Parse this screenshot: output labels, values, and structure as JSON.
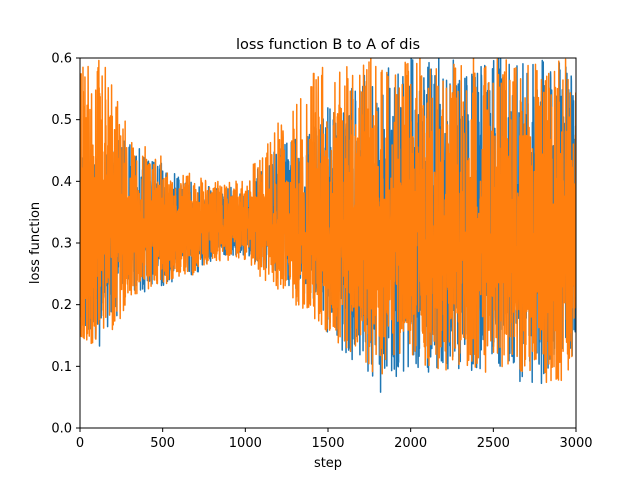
{
  "chart_data": {
    "type": "line",
    "title": "loss function B to A of dis",
    "xlabel": "step",
    "ylabel": "loss function",
    "xlim": [
      0,
      3000
    ],
    "ylim": [
      0.0,
      0.6
    ],
    "xticks": [
      0,
      500,
      1000,
      1500,
      2000,
      2500,
      3000
    ],
    "xtick_labels": [
      "0",
      "500",
      "1000",
      "1500",
      "2000",
      "2500",
      "3000"
    ],
    "yticks": [
      0.0,
      0.1,
      0.2,
      0.3,
      0.4,
      0.5,
      0.6
    ],
    "ytick_labels": [
      "0.0",
      "0.1",
      "0.2",
      "0.3",
      "0.4",
      "0.5",
      "0.6"
    ],
    "grid": false,
    "legend": "none",
    "series": [
      {
        "color": "#1f77b4",
        "x": [
          0,
          100,
          200,
          300,
          400,
          500,
          600,
          700,
          800,
          900,
          1000,
          1100,
          1200,
          1300,
          1400,
          1500,
          1600,
          1700,
          1800,
          1900,
          2000,
          2100,
          2200,
          2300,
          2400,
          2500,
          2600,
          2700,
          2800,
          2900,
          3000
        ],
        "low": [
          0.18,
          0.12,
          0.17,
          0.22,
          0.22,
          0.23,
          0.24,
          0.25,
          0.27,
          0.28,
          0.28,
          0.26,
          0.25,
          0.22,
          0.19,
          0.15,
          0.12,
          0.1,
          0.05,
          0.08,
          0.1,
          0.09,
          0.06,
          0.1,
          0.08,
          0.1,
          0.08,
          0.07,
          0.06,
          0.09,
          0.12
        ],
        "high": [
          0.44,
          0.45,
          0.47,
          0.47,
          0.45,
          0.43,
          0.41,
          0.4,
          0.39,
          0.39,
          0.39,
          0.43,
          0.46,
          0.48,
          0.5,
          0.52,
          0.55,
          0.57,
          0.58,
          0.6,
          0.6,
          0.6,
          0.6,
          0.6,
          0.6,
          0.6,
          0.6,
          0.6,
          0.6,
          0.6,
          0.6
        ],
        "mean": [
          0.32,
          0.31,
          0.32,
          0.33,
          0.32,
          0.32,
          0.32,
          0.32,
          0.33,
          0.33,
          0.33,
          0.33,
          0.33,
          0.32,
          0.31,
          0.3,
          0.3,
          0.3,
          0.3,
          0.3,
          0.3,
          0.3,
          0.3,
          0.3,
          0.3,
          0.3,
          0.3,
          0.3,
          0.3,
          0.3,
          0.3
        ]
      },
      {
        "color": "#ff7f0e",
        "x": [
          0,
          100,
          200,
          300,
          400,
          500,
          600,
          700,
          800,
          900,
          1000,
          1100,
          1200,
          1300,
          1400,
          1500,
          1600,
          1700,
          1800,
          1900,
          2000,
          2100,
          2200,
          2300,
          2400,
          2500,
          2600,
          2700,
          2800,
          2900,
          3000
        ],
        "low": [
          0.13,
          0.14,
          0.16,
          0.2,
          0.22,
          0.23,
          0.24,
          0.25,
          0.27,
          0.27,
          0.27,
          0.24,
          0.22,
          0.2,
          0.18,
          0.15,
          0.13,
          0.11,
          0.08,
          0.09,
          0.1,
          0.1,
          0.09,
          0.1,
          0.08,
          0.09,
          0.08,
          0.08,
          0.07,
          0.07,
          0.1
        ],
        "high": [
          0.6,
          0.6,
          0.58,
          0.48,
          0.46,
          0.44,
          0.42,
          0.41,
          0.4,
          0.4,
          0.41,
          0.45,
          0.5,
          0.55,
          0.58,
          0.6,
          0.6,
          0.6,
          0.6,
          0.6,
          0.6,
          0.6,
          0.6,
          0.6,
          0.6,
          0.6,
          0.6,
          0.6,
          0.6,
          0.6,
          0.6
        ],
        "mean": [
          0.33,
          0.32,
          0.32,
          0.33,
          0.32,
          0.32,
          0.32,
          0.32,
          0.33,
          0.33,
          0.33,
          0.33,
          0.33,
          0.32,
          0.31,
          0.3,
          0.3,
          0.3,
          0.3,
          0.3,
          0.3,
          0.3,
          0.3,
          0.3,
          0.3,
          0.3,
          0.3,
          0.3,
          0.3,
          0.3,
          0.3
        ]
      }
    ]
  }
}
